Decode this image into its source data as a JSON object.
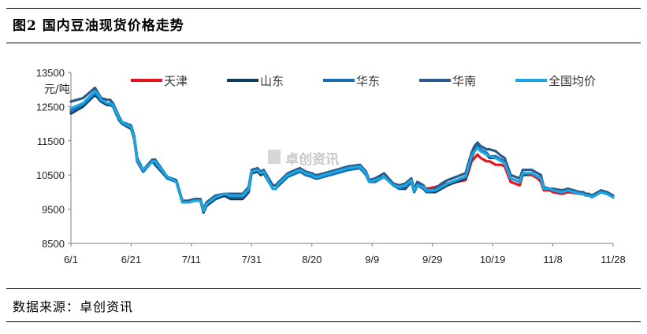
{
  "figure_title": "图2 国内豆油现货价格走势",
  "source": "数据来源：卓创资讯",
  "watermark": "卓创资讯",
  "chart_data": {
    "type": "line",
    "unit_label": "元/吨",
    "ylim": [
      8500,
      13500
    ],
    "y_ticks": [
      8500,
      9500,
      10500,
      11500,
      12500,
      13500
    ],
    "x_ticks": [
      "6/1",
      "6/21",
      "7/11",
      "7/31",
      "8/20",
      "9/9",
      "9/29",
      "10/19",
      "11/8",
      "11/28"
    ],
    "x_tick_days": [
      0,
      20,
      40,
      60,
      80,
      100,
      120,
      140,
      160,
      180
    ],
    "x_days": [
      0,
      4,
      8,
      9,
      10,
      12,
      13,
      14,
      16,
      17,
      20,
      21,
      22,
      24,
      26,
      27,
      28,
      32,
      35,
      37,
      38,
      39,
      41,
      43,
      44,
      45,
      48,
      51,
      53,
      55,
      57,
      59,
      60,
      62,
      63,
      64,
      67,
      68,
      69,
      72,
      76,
      78,
      80,
      81,
      82,
      86,
      90,
      92,
      96,
      98,
      99,
      101,
      104,
      107,
      109,
      111,
      113,
      114,
      115,
      117,
      118,
      121,
      123,
      125,
      128,
      131,
      132,
      133,
      134,
      135,
      136,
      138,
      139,
      141,
      143,
      144,
      146,
      149,
      150,
      153,
      155,
      156,
      157,
      159,
      160,
      163,
      165,
      169,
      170,
      171,
      172,
      173,
      176,
      178,
      179,
      180
    ],
    "series": [
      {
        "name": "天津",
        "color": "#e8141c",
        "values": [
          12400,
          12600,
          12900,
          12800,
          12700,
          12600,
          12600,
          12500,
          12100,
          12000,
          11900,
          11600,
          10900,
          10600,
          10800,
          10900,
          10900,
          10400,
          10300,
          9700,
          9700,
          9700,
          9750,
          9750,
          9450,
          9650,
          9850,
          9950,
          9900,
          9950,
          9950,
          10100,
          10600,
          10650,
          10550,
          10600,
          10100,
          10100,
          10250,
          10500,
          10650,
          10550,
          10500,
          10450,
          10450,
          10550,
          10650,
          10700,
          10750,
          10550,
          10300,
          10350,
          10450,
          10200,
          10150,
          10200,
          10300,
          10100,
          10200,
          10150,
          10100,
          10150,
          10200,
          10250,
          10300,
          10350,
          10600,
          10900,
          11000,
          11100,
          11000,
          10900,
          10900,
          10800,
          10800,
          10750,
          10300,
          10200,
          10500,
          10500,
          10400,
          10300,
          10050,
          10050,
          10000,
          9950,
          10000,
          9950,
          9950,
          9900,
          9900,
          9850,
          10000,
          9950,
          9900,
          9850
        ]
      },
      {
        "name": "山东",
        "color": "#0c3c5e",
        "values": [
          12300,
          12500,
          12850,
          12750,
          12650,
          12550,
          12550,
          12500,
          12100,
          12000,
          11850,
          11550,
          10900,
          10600,
          10800,
          10900,
          10800,
          10400,
          10300,
          9700,
          9700,
          9700,
          9750,
          9750,
          9400,
          9600,
          9800,
          9900,
          9800,
          9800,
          9800,
          10000,
          10550,
          10600,
          10500,
          10550,
          10100,
          10100,
          10200,
          10450,
          10600,
          10500,
          10450,
          10400,
          10400,
          10500,
          10600,
          10650,
          10700,
          10500,
          10300,
          10300,
          10450,
          10200,
          10100,
          10100,
          10300,
          10000,
          10200,
          10100,
          10000,
          10000,
          10100,
          10200,
          10300,
          10400,
          10700,
          11000,
          11200,
          11300,
          11200,
          11100,
          11000,
          11000,
          10900,
          10900,
          10400,
          10300,
          10500,
          10550,
          10450,
          10400,
          10100,
          10100,
          10050,
          10000,
          10050,
          9950,
          9950,
          9900,
          9900,
          9850,
          10000,
          9950,
          9900,
          9850
        ]
      },
      {
        "name": "华东",
        "color": "#1a6fb4",
        "values": [
          12350,
          12550,
          12900,
          12800,
          12700,
          12600,
          12600,
          12500,
          12100,
          12000,
          11900,
          11600,
          10900,
          10600,
          10800,
          10900,
          10850,
          10400,
          10300,
          9700,
          9700,
          9700,
          9750,
          9750,
          9450,
          9650,
          9850,
          9950,
          9850,
          9850,
          9850,
          10050,
          10600,
          10650,
          10550,
          10600,
          10100,
          10100,
          10250,
          10450,
          10600,
          10500,
          10450,
          10400,
          10400,
          10500,
          10600,
          10650,
          10700,
          10500,
          10300,
          10300,
          10450,
          10200,
          10100,
          10150,
          10300,
          10000,
          10200,
          10100,
          10000,
          10050,
          10150,
          10250,
          10350,
          10450,
          10750,
          11050,
          11250,
          11350,
          11250,
          11150,
          11050,
          11050,
          10950,
          10900,
          10400,
          10300,
          10550,
          10550,
          10450,
          10400,
          10100,
          10100,
          10050,
          10000,
          10050,
          9950,
          9950,
          9900,
          9900,
          9850,
          10000,
          9950,
          9900,
          9850
        ]
      },
      {
        "name": "华南",
        "color": "#2a5a8c",
        "values": [
          12650,
          12750,
          13050,
          12900,
          12750,
          12700,
          12700,
          12600,
          12200,
          12050,
          11950,
          11650,
          11000,
          10650,
          10850,
          10950,
          10950,
          10450,
          10350,
          9750,
          9750,
          9750,
          9800,
          9800,
          9500,
          9700,
          9900,
          9950,
          9950,
          9950,
          9950,
          10150,
          10650,
          10700,
          10600,
          10650,
          10200,
          10200,
          10300,
          10550,
          10700,
          10600,
          10550,
          10500,
          10500,
          10600,
          10700,
          10750,
          10800,
          10600,
          10350,
          10400,
          10550,
          10250,
          10200,
          10250,
          10400,
          10100,
          10300,
          10200,
          10050,
          10100,
          10250,
          10350,
          10450,
          10550,
          10850,
          11150,
          11350,
          11450,
          11350,
          11250,
          11250,
          11200,
          11050,
          11000,
          10500,
          10400,
          10650,
          10650,
          10550,
          10500,
          10150,
          10100,
          10100,
          10050,
          10100,
          10000,
          10000,
          9950,
          9950,
          9900,
          10050,
          10000,
          9950,
          9900
        ]
      },
      {
        "name": "全国均价",
        "color": "#1aa7e1",
        "values": [
          12450,
          12600,
          12950,
          12850,
          12700,
          12600,
          12600,
          12550,
          12150,
          12050,
          11900,
          11600,
          10950,
          10650,
          10800,
          10900,
          10900,
          10450,
          10300,
          9700,
          9700,
          9700,
          9750,
          9750,
          9450,
          9650,
          9850,
          9950,
          9900,
          9900,
          9900,
          10100,
          10600,
          10650,
          10550,
          10600,
          10100,
          10100,
          10250,
          10500,
          10650,
          10550,
          10500,
          10450,
          10450,
          10550,
          10650,
          10700,
          10750,
          10550,
          10300,
          10350,
          10450,
          10200,
          10150,
          10200,
          10350,
          10050,
          10200,
          10150,
          10050,
          10050,
          10150,
          10250,
          10350,
          10450,
          10750,
          11050,
          11200,
          11300,
          11200,
          11100,
          11050,
          11000,
          10900,
          10850,
          10400,
          10300,
          10550,
          10550,
          10450,
          10400,
          10100,
          10100,
          10050,
          10000,
          10050,
          9950,
          9950,
          9900,
          9900,
          9850,
          10000,
          9950,
          9900,
          9850
        ]
      }
    ],
    "legend_position": "top"
  }
}
